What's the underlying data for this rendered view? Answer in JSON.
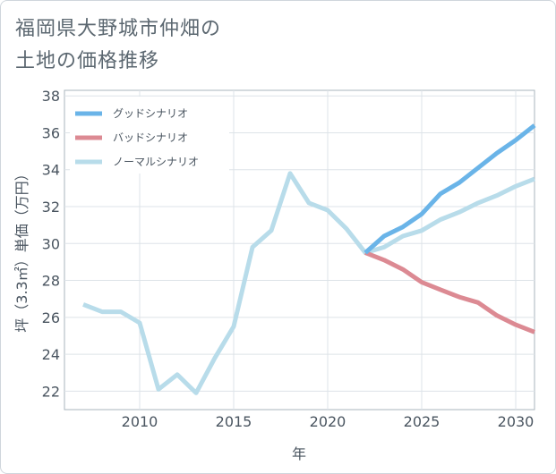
{
  "title": {
    "line1": "福岡県大野城市仲畑の",
    "line2": "土地の価格推移"
  },
  "chart_data": {
    "type": "line",
    "xlabel": "年",
    "ylabel": "坪（3.3㎡）単価（万円）",
    "xlim": [
      2006,
      2031
    ],
    "ylim": [
      21,
      38.3
    ],
    "xticks": [
      2010,
      2015,
      2020,
      2025,
      2030
    ],
    "yticks": [
      22,
      24,
      26,
      28,
      30,
      32,
      34,
      36,
      38
    ],
    "legend_position": "top-left",
    "series": [
      {
        "name": "グッドシナリオ",
        "color": "#6ab4e8",
        "x": [
          2022,
          2023,
          2024,
          2025,
          2026,
          2027,
          2028,
          2029,
          2030,
          2031
        ],
        "y": [
          29.5,
          30.4,
          30.9,
          31.6,
          32.7,
          33.3,
          34.1,
          34.9,
          35.6,
          36.4
        ]
      },
      {
        "name": "バッドシナリオ",
        "color": "#dc8a93",
        "x": [
          2022,
          2023,
          2024,
          2025,
          2026,
          2027,
          2028,
          2029,
          2030,
          2031
        ],
        "y": [
          29.5,
          29.1,
          28.6,
          27.9,
          27.5,
          27.1,
          26.8,
          26.1,
          25.6,
          25.2
        ]
      },
      {
        "name": "ノーマルシナリオ",
        "color": "#b8dcea",
        "x": [
          2007,
          2008,
          2009,
          2010,
          2011,
          2012,
          2013,
          2014,
          2015,
          2016,
          2017,
          2018,
          2019,
          2020,
          2021,
          2022,
          2023,
          2024,
          2025,
          2026,
          2027,
          2028,
          2029,
          2030,
          2031
        ],
        "y": [
          26.7,
          26.3,
          26.3,
          25.7,
          22.1,
          22.9,
          21.9,
          23.8,
          25.5,
          29.8,
          30.7,
          33.8,
          32.2,
          31.8,
          30.8,
          29.5,
          29.8,
          30.4,
          30.7,
          31.3,
          31.7,
          32.2,
          32.6,
          33.1,
          33.5
        ]
      }
    ]
  }
}
